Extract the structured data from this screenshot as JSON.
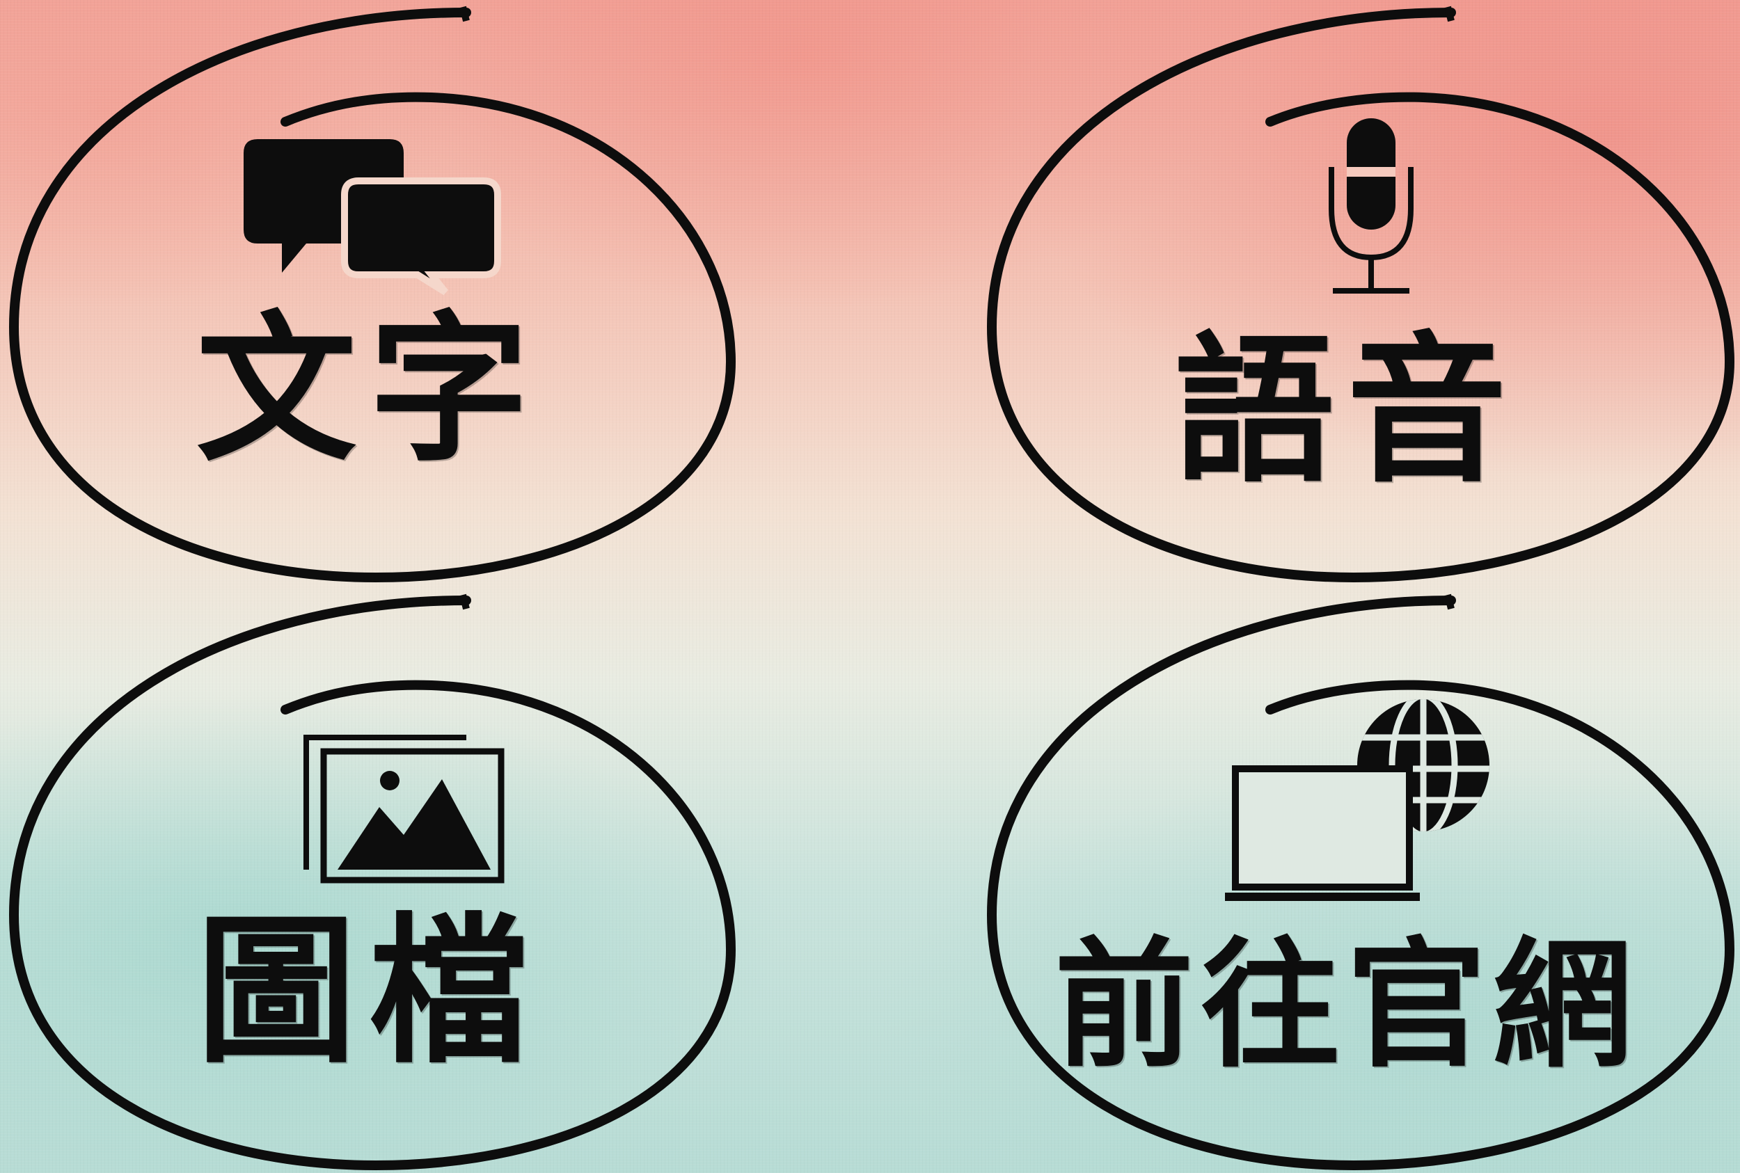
{
  "colors": {
    "ink": "#0d0d0d",
    "bg_top": "#f2a59a",
    "bg_bottom": "#b7dcd5"
  },
  "options": [
    {
      "label": "文字",
      "icon": "chat-bubbles-icon"
    },
    {
      "label": "語音",
      "icon": "microphone-icon"
    },
    {
      "label": "圖檔",
      "icon": "images-icon"
    },
    {
      "label": "前往官網",
      "icon": "laptop-globe-icon"
    }
  ]
}
